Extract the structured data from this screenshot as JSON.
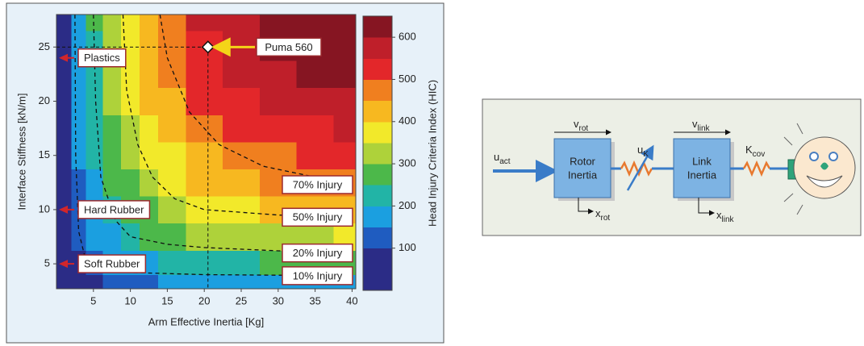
{
  "chart_data": {
    "type": "heatmap",
    "x_label": "Arm Effective Inertia [Kg]",
    "y_label": "Interface Stiffness [kN/m]",
    "xlim": [
      0,
      40.5
    ],
    "ylim": [
      2.7,
      28
    ],
    "xticks": [
      5,
      10,
      15,
      20,
      25,
      30,
      35,
      40
    ],
    "yticks": [
      5,
      10,
      15,
      20,
      25
    ],
    "x": [
      1,
      3,
      5,
      7.5,
      10,
      12.5,
      15,
      20,
      25,
      30,
      35,
      40
    ],
    "y": [
      3,
      5,
      7.5,
      10,
      12.5,
      15,
      17.5,
      20,
      22.5,
      25,
      28
    ],
    "z": [
      [
        52,
        74,
        93,
        112,
        127,
        140,
        150,
        165,
        175,
        182,
        186,
        189
      ],
      [
        59,
        93,
        121,
        151,
        175,
        194,
        210,
        234,
        249,
        259,
        266,
        270
      ],
      [
        66,
        112,
        151,
        191,
        224,
        251,
        272,
        304,
        325,
        339,
        348,
        354
      ],
      [
        72,
        127,
        175,
        224,
        263,
        296,
        322,
        361,
        386,
        403,
        414,
        421
      ],
      [
        76,
        140,
        194,
        251,
        296,
        333,
        363,
        407,
        436,
        456,
        468,
        477
      ],
      [
        80,
        150,
        210,
        272,
        322,
        363,
        396,
        445,
        477,
        498,
        512,
        521
      ],
      [
        83,
        159,
        223,
        290,
        343,
        387,
        423,
        475,
        510,
        533,
        548,
        558
      ],
      [
        85,
        165,
        234,
        304,
        361,
        407,
        445,
        500,
        537,
        561,
        577,
        587
      ],
      [
        87,
        171,
        242,
        316,
        375,
        424,
        463,
        521,
        559,
        584,
        601,
        612
      ],
      [
        89,
        175,
        249,
        325,
        386,
        436,
        477,
        537,
        576,
        602,
        619,
        630
      ],
      [
        91,
        180,
        256,
        334,
        397,
        449,
        491,
        553,
        593,
        620,
        638,
        649
      ]
    ],
    "colorbar": {
      "label": "Head Injury Criteria Index (HIC)",
      "lim": [
        0,
        650
      ],
      "ticks": [
        100,
        200,
        300,
        400,
        500,
        600
      ],
      "levels": [
        0,
        100,
        150,
        200,
        250,
        300,
        350,
        400,
        450,
        500,
        550,
        600,
        650
      ],
      "colors": [
        "#2b2c86",
        "#1f5cc0",
        "#1b9fe0",
        "#22b4a6",
        "#4cb84a",
        "#aed23a",
        "#f2e92a",
        "#f7b820",
        "#f07f1f",
        "#e3272a",
        "#bf1f2a",
        "#861522"
      ]
    },
    "contours": [
      {
        "label": "70% Injury",
        "x": [
          14,
          15,
          18,
          22,
          28,
          35,
          40
        ],
        "y": [
          28,
          24,
          19,
          16,
          14,
          13,
          12.3
        ]
      },
      {
        "label": "50% Injury",
        "x": [
          9,
          9.5,
          11,
          13,
          16,
          20,
          30,
          40
        ],
        "y": [
          28,
          21,
          16,
          13,
          11,
          10,
          9.5,
          9.3
        ]
      },
      {
        "label": "20% Injury",
        "x": [
          5,
          5.3,
          6,
          8,
          10,
          15,
          20,
          30,
          40
        ],
        "y": [
          28,
          20,
          13,
          9,
          7.5,
          6.8,
          6.5,
          6.2,
          6.0
        ]
      },
      {
        "label": "10% Injury",
        "x": [
          2.5,
          2.6,
          3,
          4,
          6,
          10,
          20,
          40
        ],
        "y": [
          28,
          15,
          8,
          5.2,
          4.5,
          4.2,
          4.0,
          3.9
        ]
      }
    ],
    "point": {
      "label": "Puma 560",
      "x": 20.5,
      "y": 25
    },
    "materials": [
      {
        "label": "Plastics",
        "y": 24
      },
      {
        "label": "Hard Rubber",
        "y": 10
      },
      {
        "label": "Soft Rubber",
        "y": 5
      }
    ]
  },
  "diagram": {
    "u_act": {
      "main": "u",
      "sub": "act"
    },
    "v_rot": {
      "main": "v",
      "sub": "rot"
    },
    "rotor": [
      "Rotor",
      "Inertia"
    ],
    "x_rot": {
      "main": "x",
      "sub": "rot"
    },
    "u_K": {
      "main": "u",
      "sub": "K"
    },
    "v_link": {
      "main": "v",
      "sub": "link"
    },
    "link": [
      "Link",
      "Inertia"
    ],
    "x_link": {
      "main": "x",
      "sub": "link"
    },
    "K_cov": {
      "main": "K",
      "sub": "cov"
    }
  }
}
